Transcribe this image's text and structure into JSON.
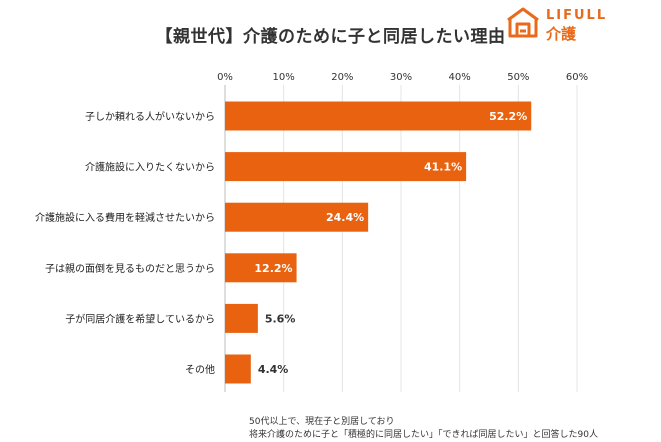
{
  "title": "【親世代】介護のために子と同居したい理由",
  "logo": {
    "wordmark": "LIFULL",
    "service": "介護",
    "icon": "house-logo-icon",
    "color": "#e86a1a"
  },
  "chart_data": {
    "type": "bar",
    "orientation": "horizontal",
    "title": "【親世代】介護のために子と同居したい理由",
    "categories": [
      "子しか頼れる人がいないから",
      "介護施設に入りたくないから",
      "介護施設に入る費用を軽減させたいから",
      "子は親の面倒を見るものだと思うから",
      "子が同居介護を希望しているから",
      "その他"
    ],
    "values": [
      52.2,
      41.1,
      24.4,
      12.2,
      5.6,
      4.4
    ],
    "value_labels": [
      "52.2%",
      "41.1%",
      "24.4%",
      "12.2%",
      "5.6%",
      "4.4%"
    ],
    "xlim": [
      0,
      60
    ],
    "xticks": [
      0,
      10,
      20,
      30,
      40,
      50,
      60
    ],
    "xtick_labels": [
      "0%",
      "10%",
      "20%",
      "30%",
      "40%",
      "50%",
      "60%"
    ],
    "grid": true,
    "bar_color": "#e8620f",
    "xlabel": "",
    "ylabel": ""
  },
  "note": {
    "line1": "50代以上で、現在子と別居しており",
    "line2": "将来介護のために子と「積極的に同居したい」「できれば同居したい」と回答した90人"
  }
}
